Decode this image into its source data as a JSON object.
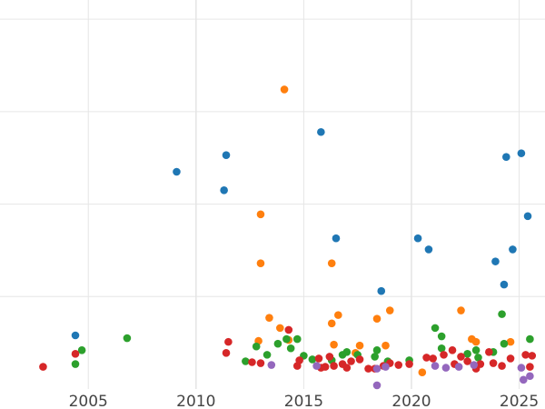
{
  "chart_data": {
    "type": "scatter",
    "title": "",
    "xlabel": "",
    "ylabel": "",
    "xlim": [
      2000.9,
      2026.2
    ],
    "ylim": [
      0,
      4.1
    ],
    "grid": true,
    "x_ticks": [
      2005,
      2010,
      2015,
      2020,
      2025
    ],
    "x_tick_labels": [
      "2005",
      "2010",
      "2015",
      "2020",
      "2025"
    ],
    "y_gridlines": [
      1,
      2,
      3,
      4
    ],
    "colors": {
      "blue": "#1f77b4",
      "orange": "#ff7f0e",
      "green": "#2ca02c",
      "red": "#d62728",
      "purple": "#9467bd"
    },
    "series": [
      {
        "name": "blue",
        "color": "#1f77b4",
        "points": [
          [
            2004.4,
            0.58
          ],
          [
            2009.1,
            2.35
          ],
          [
            2011.3,
            2.15
          ],
          [
            2011.4,
            2.53
          ],
          [
            2015.8,
            2.78
          ],
          [
            2016.5,
            1.63
          ],
          [
            2018.6,
            1.06
          ],
          [
            2020.3,
            1.63
          ],
          [
            2020.8,
            1.51
          ],
          [
            2023.9,
            1.38
          ],
          [
            2024.3,
            1.13
          ],
          [
            2024.4,
            2.51
          ],
          [
            2024.7,
            1.51
          ],
          [
            2025.1,
            2.55
          ],
          [
            2025.4,
            1.87
          ]
        ]
      },
      {
        "name": "orange",
        "color": "#ff7f0e",
        "points": [
          [
            2012.9,
            0.52
          ],
          [
            2013.0,
            1.36
          ],
          [
            2013.0,
            1.89
          ],
          [
            2013.4,
            0.77
          ],
          [
            2013.9,
            0.66
          ],
          [
            2014.1,
            3.24
          ],
          [
            2014.3,
            0.53
          ],
          [
            2016.3,
            0.71
          ],
          [
            2016.3,
            1.36
          ],
          [
            2016.4,
            0.48
          ],
          [
            2016.6,
            0.8
          ],
          [
            2017.4,
            0.39
          ],
          [
            2017.6,
            0.47
          ],
          [
            2018.4,
            0.76
          ],
          [
            2018.8,
            0.47
          ],
          [
            2019.0,
            0.85
          ],
          [
            2020.5,
            0.18
          ],
          [
            2022.3,
            0.85
          ],
          [
            2022.8,
            0.54
          ],
          [
            2023.0,
            0.51
          ],
          [
            2024.6,
            0.51
          ]
        ]
      },
      {
        "name": "green",
        "color": "#2ca02c",
        "points": [
          [
            2004.4,
            0.27
          ],
          [
            2004.7,
            0.42
          ],
          [
            2006.8,
            0.55
          ],
          [
            2012.3,
            0.3
          ],
          [
            2012.8,
            0.46
          ],
          [
            2013.3,
            0.37
          ],
          [
            2013.8,
            0.49
          ],
          [
            2014.2,
            0.54
          ],
          [
            2014.4,
            0.44
          ],
          [
            2014.7,
            0.54
          ],
          [
            2015.0,
            0.36
          ],
          [
            2015.4,
            0.32
          ],
          [
            2016.3,
            0.31
          ],
          [
            2016.8,
            0.37
          ],
          [
            2017.0,
            0.4
          ],
          [
            2017.5,
            0.37
          ],
          [
            2018.3,
            0.35
          ],
          [
            2018.4,
            0.42
          ],
          [
            2018.9,
            0.3
          ],
          [
            2019.9,
            0.31
          ],
          [
            2021.1,
            0.66
          ],
          [
            2021.4,
            0.44
          ],
          [
            2021.4,
            0.57
          ],
          [
            2022.6,
            0.38
          ],
          [
            2023.0,
            0.42
          ],
          [
            2023.1,
            0.34
          ],
          [
            2023.8,
            0.4
          ],
          [
            2024.2,
            0.81
          ],
          [
            2024.3,
            0.49
          ],
          [
            2025.5,
            0.54
          ]
        ]
      },
      {
        "name": "red",
        "color": "#d62728",
        "points": [
          [
            2002.9,
            0.24
          ],
          [
            2004.4,
            0.38
          ],
          [
            2011.4,
            0.39
          ],
          [
            2011.5,
            0.51
          ],
          [
            2012.6,
            0.29
          ],
          [
            2013.0,
            0.28
          ],
          [
            2014.3,
            0.64
          ],
          [
            2014.7,
            0.25
          ],
          [
            2014.8,
            0.31
          ],
          [
            2015.7,
            0.33
          ],
          [
            2015.8,
            0.23
          ],
          [
            2016.0,
            0.24
          ],
          [
            2016.2,
            0.35
          ],
          [
            2016.4,
            0.25
          ],
          [
            2016.8,
            0.27
          ],
          [
            2017.0,
            0.23
          ],
          [
            2017.2,
            0.3
          ],
          [
            2017.6,
            0.32
          ],
          [
            2018.0,
            0.22
          ],
          [
            2018.3,
            0.22
          ],
          [
            2018.7,
            0.25
          ],
          [
            2019.0,
            0.28
          ],
          [
            2019.4,
            0.26
          ],
          [
            2019.9,
            0.27
          ],
          [
            2020.7,
            0.34
          ],
          [
            2021.0,
            0.33
          ],
          [
            2021.5,
            0.37
          ],
          [
            2021.9,
            0.42
          ],
          [
            2022.0,
            0.27
          ],
          [
            2022.3,
            0.35
          ],
          [
            2022.6,
            0.3
          ],
          [
            2023.0,
            0.22
          ],
          [
            2023.2,
            0.27
          ],
          [
            2023.6,
            0.4
          ],
          [
            2023.8,
            0.28
          ],
          [
            2024.2,
            0.25
          ],
          [
            2024.6,
            0.33
          ],
          [
            2025.3,
            0.37
          ],
          [
            2025.5,
            0.24
          ],
          [
            2025.6,
            0.36
          ]
        ]
      },
      {
        "name": "purple",
        "color": "#9467bd",
        "points": [
          [
            2013.5,
            0.26
          ],
          [
            2015.6,
            0.25
          ],
          [
            2018.4,
            0.04
          ],
          [
            2018.4,
            0.22
          ],
          [
            2018.8,
            0.24
          ],
          [
            2021.1,
            0.25
          ],
          [
            2021.6,
            0.23
          ],
          [
            2022.2,
            0.24
          ],
          [
            2022.9,
            0.26
          ],
          [
            2025.1,
            0.23
          ],
          [
            2025.2,
            0.1
          ],
          [
            2025.5,
            0.14
          ]
        ]
      }
    ]
  }
}
